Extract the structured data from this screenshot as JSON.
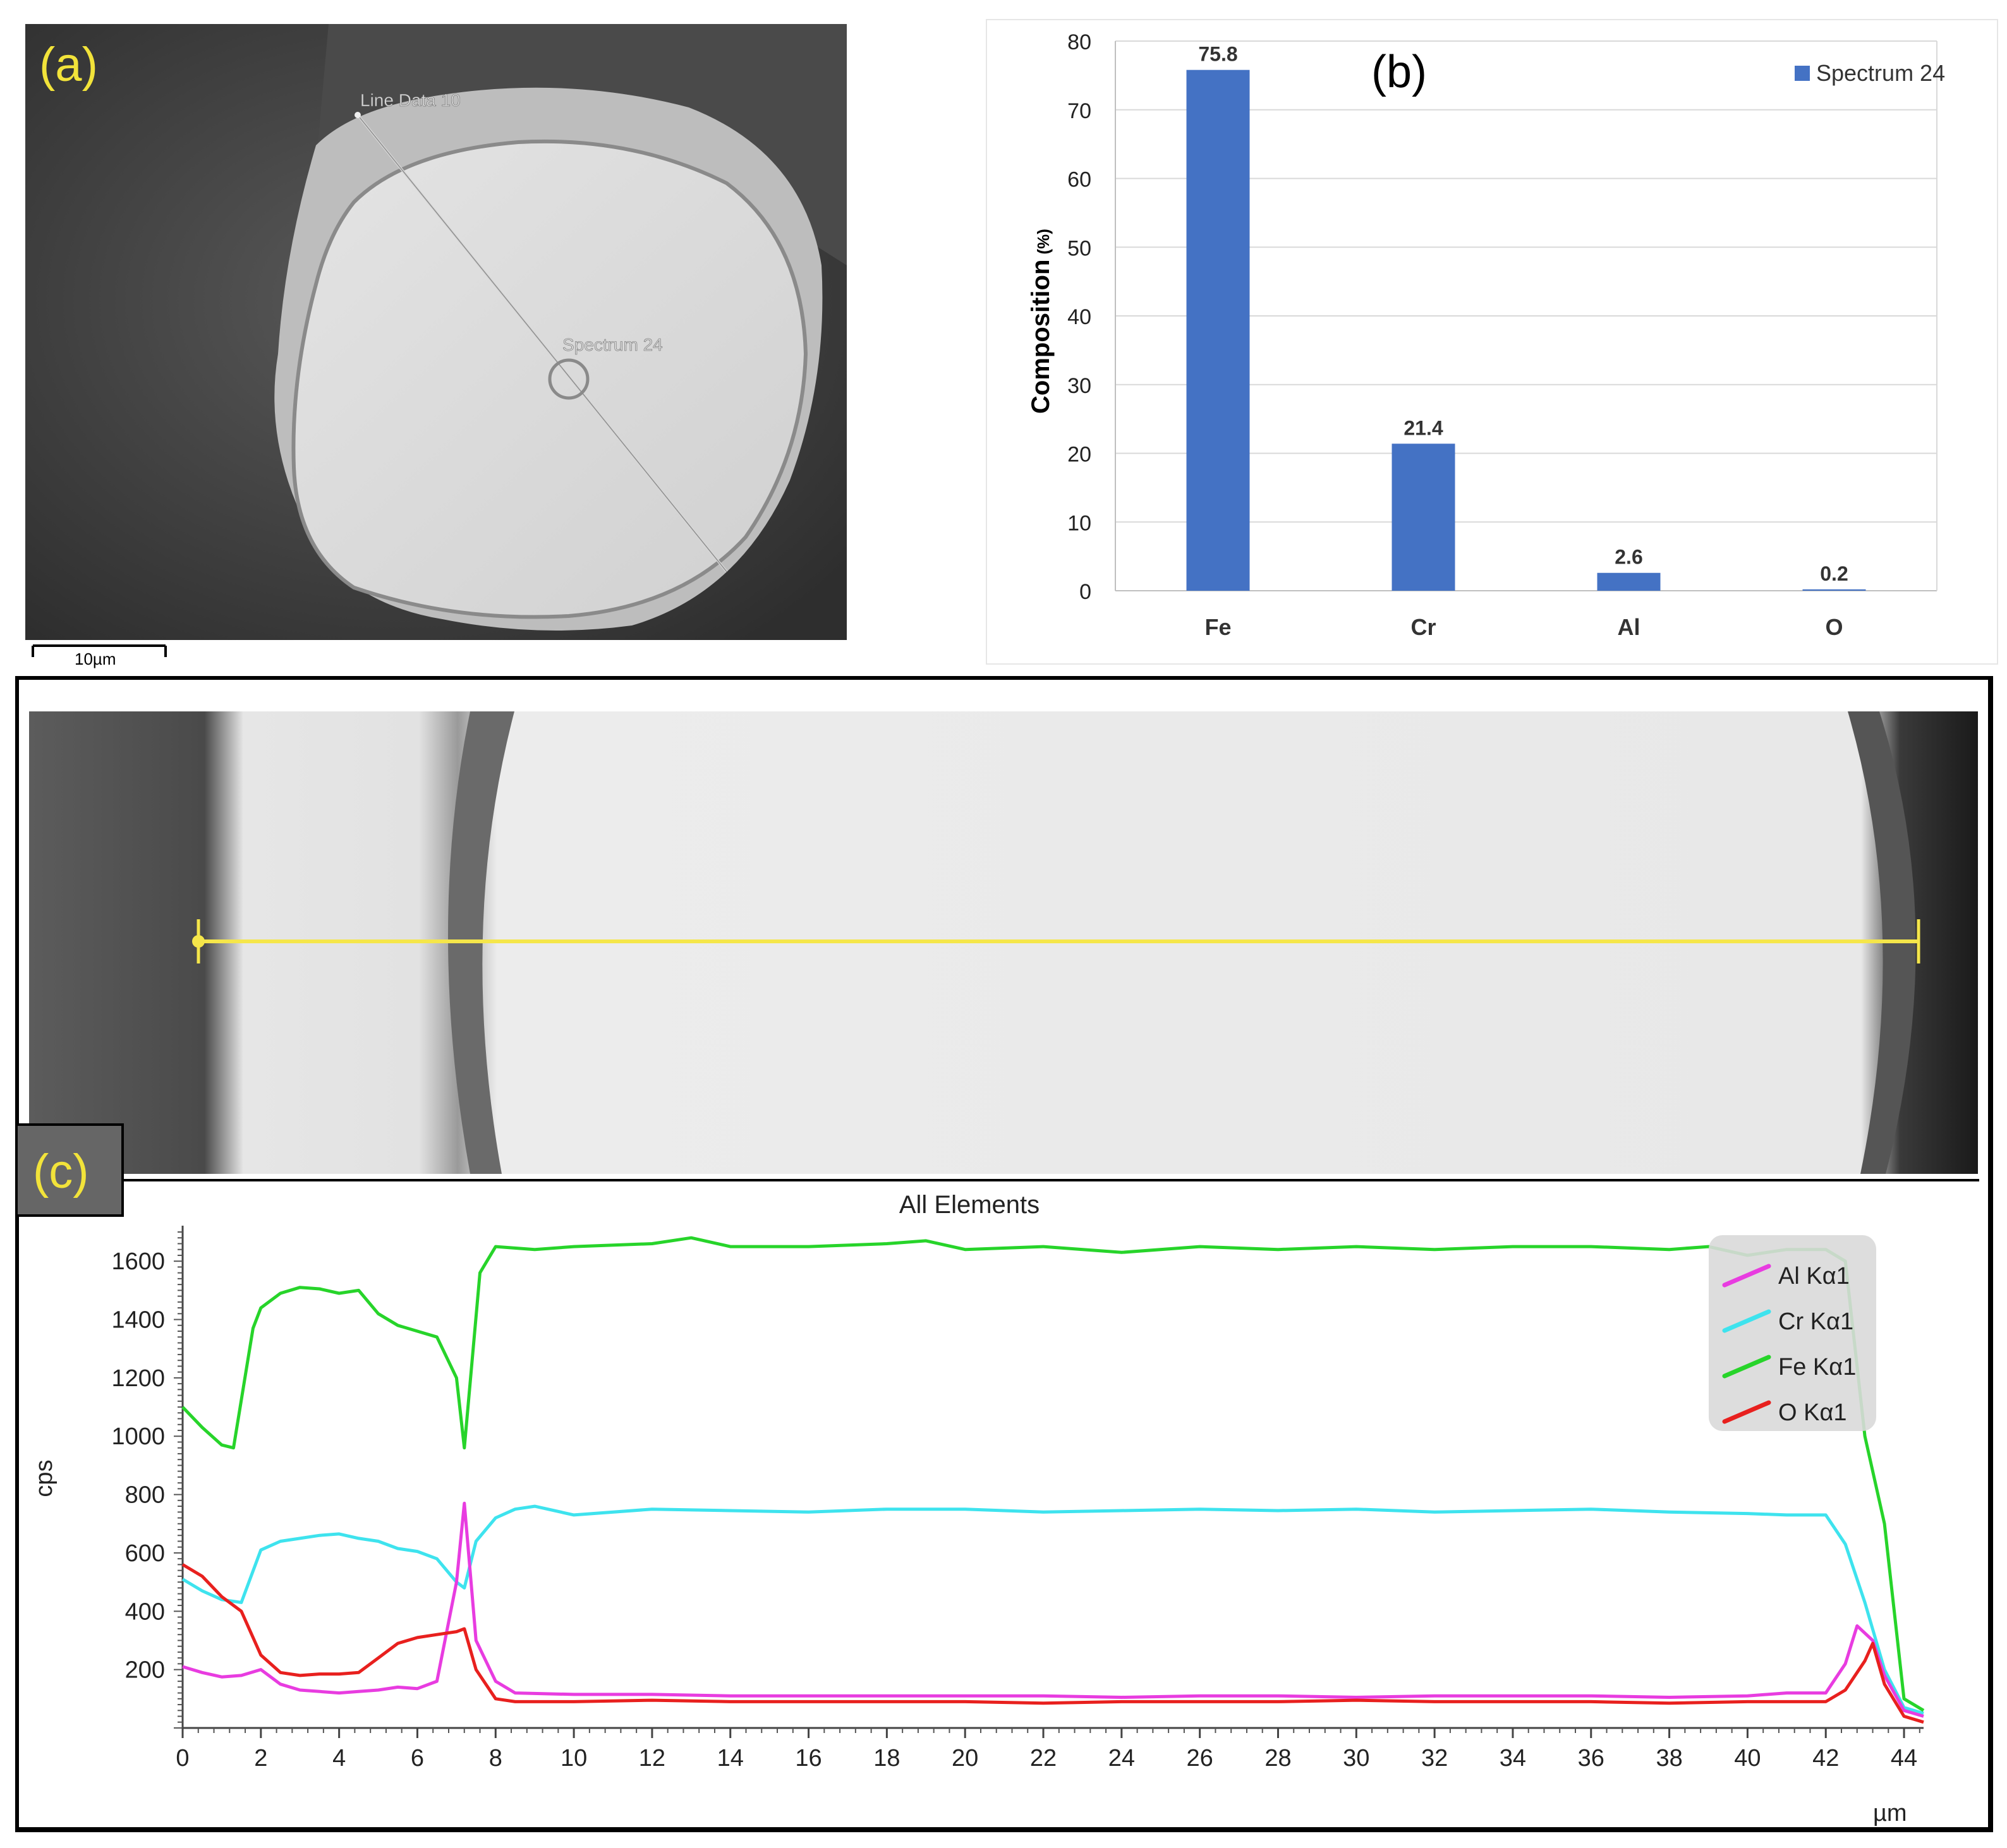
{
  "panel_a": {
    "label": "(a)",
    "line_label": "Line Data 10",
    "spectrum_label": "Spectrum 24",
    "scale_bar_label": "10µm",
    "label_color": "#f2e33a"
  },
  "panel_c": {
    "label": "(c)",
    "label_color": "#f2e33a",
    "line_color": "#f5e64a"
  },
  "chart_data": [
    {
      "type": "bar",
      "panel": "(b)",
      "categories": [
        "Fe",
        "Cr",
        "Al",
        "O"
      ],
      "series": [
        {
          "name": "Spectrum 24",
          "values": [
            75.8,
            21.4,
            2.6,
            0.2
          ],
          "color": "#4472c4"
        }
      ],
      "data_labels": [
        "75.8",
        "21.4",
        "2.6",
        "0.2"
      ],
      "title": "",
      "xlabel": "",
      "ylabel": "Composition",
      "ylabel_unit": "(%)",
      "ylim": [
        0,
        80
      ],
      "yticks": [
        0,
        10,
        20,
        30,
        40,
        50,
        60,
        70,
        80
      ],
      "grid": true,
      "legend": "top-right"
    },
    {
      "type": "line",
      "panel": "(c)",
      "title": "All Elements",
      "xlabel": "µm",
      "ylabel": "cps",
      "xlim": [
        0,
        44.5
      ],
      "ylim": [
        0,
        1700
      ],
      "xticks": [
        0,
        2,
        4,
        6,
        8,
        10,
        12,
        14,
        16,
        18,
        20,
        22,
        24,
        26,
        28,
        30,
        32,
        34,
        36,
        38,
        40,
        42,
        44
      ],
      "yticks": [
        200,
        400,
        600,
        800,
        1000,
        1200,
        1400,
        1600
      ],
      "grid": false,
      "legend": "top-right",
      "series": [
        {
          "name": "Al Kα1",
          "color": "#e83ce0",
          "points": [
            [
              0,
              210
            ],
            [
              0.5,
              190
            ],
            [
              1,
              175
            ],
            [
              1.5,
              180
            ],
            [
              2,
              200
            ],
            [
              2.5,
              150
            ],
            [
              3,
              130
            ],
            [
              3.5,
              125
            ],
            [
              4,
              120
            ],
            [
              4.5,
              125
            ],
            [
              5,
              130
            ],
            [
              5.5,
              140
            ],
            [
              6,
              135
            ],
            [
              6.5,
              160
            ],
            [
              7,
              500
            ],
            [
              7.2,
              770
            ],
            [
              7.5,
              300
            ],
            [
              8,
              160
            ],
            [
              8.5,
              120
            ],
            [
              10,
              115
            ],
            [
              12,
              115
            ],
            [
              14,
              110
            ],
            [
              16,
              110
            ],
            [
              18,
              110
            ],
            [
              20,
              110
            ],
            [
              22,
              110
            ],
            [
              24,
              105
            ],
            [
              26,
              110
            ],
            [
              28,
              110
            ],
            [
              30,
              105
            ],
            [
              32,
              110
            ],
            [
              34,
              110
            ],
            [
              36,
              110
            ],
            [
              38,
              105
            ],
            [
              40,
              110
            ],
            [
              41,
              120
            ],
            [
              42,
              120
            ],
            [
              42.5,
              220
            ],
            [
              42.8,
              350
            ],
            [
              43.2,
              300
            ],
            [
              43.5,
              180
            ],
            [
              44,
              60
            ],
            [
              44.5,
              40
            ]
          ]
        },
        {
          "name": "Cr Kα1",
          "color": "#3ee3ee",
          "points": [
            [
              0,
              510
            ],
            [
              0.5,
              470
            ],
            [
              1,
              440
            ],
            [
              1.5,
              430
            ],
            [
              2,
              610
            ],
            [
              2.5,
              640
            ],
            [
              3,
              650
            ],
            [
              3.5,
              660
            ],
            [
              4,
              665
            ],
            [
              4.5,
              650
            ],
            [
              5,
              640
            ],
            [
              5.5,
              615
            ],
            [
              6,
              605
            ],
            [
              6.5,
              580
            ],
            [
              7,
              500
            ],
            [
              7.2,
              480
            ],
            [
              7.5,
              640
            ],
            [
              8,
              720
            ],
            [
              8.5,
              750
            ],
            [
              9,
              760
            ],
            [
              10,
              730
            ],
            [
              12,
              750
            ],
            [
              14,
              745
            ],
            [
              16,
              740
            ],
            [
              18,
              750
            ],
            [
              20,
              750
            ],
            [
              22,
              740
            ],
            [
              24,
              745
            ],
            [
              26,
              750
            ],
            [
              28,
              745
            ],
            [
              30,
              750
            ],
            [
              32,
              740
            ],
            [
              34,
              745
            ],
            [
              36,
              750
            ],
            [
              38,
              740
            ],
            [
              40,
              735
            ],
            [
              41,
              730
            ],
            [
              42,
              730
            ],
            [
              42.5,
              630
            ],
            [
              43,
              430
            ],
            [
              43.5,
              200
            ],
            [
              44,
              70
            ],
            [
              44.5,
              50
            ]
          ]
        },
        {
          "name": "Fe Kα1",
          "color": "#27d42a",
          "points": [
            [
              0,
              1100
            ],
            [
              0.5,
              1030
            ],
            [
              1,
              970
            ],
            [
              1.3,
              960
            ],
            [
              1.8,
              1370
            ],
            [
              2,
              1440
            ],
            [
              2.5,
              1490
            ],
            [
              3,
              1510
            ],
            [
              3.5,
              1505
            ],
            [
              4,
              1490
            ],
            [
              4.5,
              1500
            ],
            [
              5,
              1420
            ],
            [
              5.5,
              1380
            ],
            [
              6,
              1360
            ],
            [
              6.5,
              1340
            ],
            [
              7,
              1200
            ],
            [
              7.2,
              960
            ],
            [
              7.6,
              1560
            ],
            [
              8,
              1650
            ],
            [
              9,
              1640
            ],
            [
              10,
              1650
            ],
            [
              12,
              1660
            ],
            [
              13,
              1680
            ],
            [
              14,
              1650
            ],
            [
              16,
              1650
            ],
            [
              18,
              1660
            ],
            [
              19,
              1670
            ],
            [
              20,
              1640
            ],
            [
              22,
              1650
            ],
            [
              24,
              1630
            ],
            [
              26,
              1650
            ],
            [
              28,
              1640
            ],
            [
              30,
              1650
            ],
            [
              32,
              1640
            ],
            [
              34,
              1650
            ],
            [
              36,
              1650
            ],
            [
              38,
              1640
            ],
            [
              39,
              1650
            ],
            [
              40,
              1620
            ],
            [
              41,
              1640
            ],
            [
              42,
              1640
            ],
            [
              42.5,
              1600
            ],
            [
              43,
              1000
            ],
            [
              43.5,
              700
            ],
            [
              44,
              100
            ],
            [
              44.5,
              60
            ]
          ]
        },
        {
          "name": "O Kα1",
          "color": "#e8201e",
          "points": [
            [
              0,
              560
            ],
            [
              0.5,
              520
            ],
            [
              1,
              450
            ],
            [
              1.5,
              400
            ],
            [
              2,
              250
            ],
            [
              2.5,
              190
            ],
            [
              3,
              180
            ],
            [
              3.5,
              185
            ],
            [
              4,
              185
            ],
            [
              4.5,
              190
            ],
            [
              5,
              240
            ],
            [
              5.5,
              290
            ],
            [
              6,
              310
            ],
            [
              6.5,
              320
            ],
            [
              7,
              330
            ],
            [
              7.2,
              340
            ],
            [
              7.5,
              200
            ],
            [
              8,
              100
            ],
            [
              8.5,
              90
            ],
            [
              10,
              90
            ],
            [
              12,
              95
            ],
            [
              14,
              90
            ],
            [
              16,
              90
            ],
            [
              18,
              90
            ],
            [
              20,
              90
            ],
            [
              22,
              85
            ],
            [
              24,
              90
            ],
            [
              26,
              90
            ],
            [
              28,
              90
            ],
            [
              30,
              95
            ],
            [
              32,
              90
            ],
            [
              34,
              90
            ],
            [
              36,
              90
            ],
            [
              38,
              85
            ],
            [
              40,
              90
            ],
            [
              41,
              90
            ],
            [
              42,
              90
            ],
            [
              42.5,
              130
            ],
            [
              43,
              230
            ],
            [
              43.2,
              290
            ],
            [
              43.5,
              150
            ],
            [
              44,
              40
            ],
            [
              44.5,
              20
            ]
          ]
        }
      ]
    }
  ]
}
